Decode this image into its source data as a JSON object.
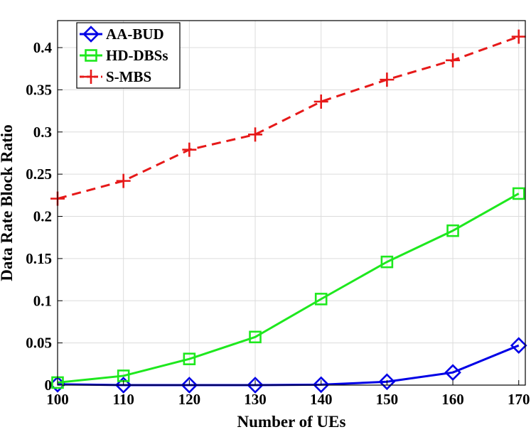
{
  "chart_data": {
    "type": "line",
    "xlabel": "Number of UEs",
    "ylabel": "Data Rate Block Ratio",
    "x": [
      100,
      110,
      120,
      130,
      140,
      150,
      160,
      170
    ],
    "xticks": [
      "100",
      "110",
      "120",
      "130",
      "140",
      "150",
      "160",
      "170"
    ],
    "yticks": [
      "0",
      "0.05",
      "0.1",
      "0.15",
      "0.2",
      "0.25",
      "0.3",
      "0.35",
      "0.4"
    ],
    "xlim": [
      100,
      171
    ],
    "ylim": [
      0,
      0.432
    ],
    "grid": true,
    "legend_position": "top-left",
    "series": [
      {
        "name": "AA-BUD",
        "color": "#0000e6",
        "marker": "diamond",
        "line": "solid",
        "values": [
          0.001,
          0.0,
          0.0,
          0.0,
          0.0005,
          0.004,
          0.015,
          0.047
        ]
      },
      {
        "name": "HD-DBSs",
        "color": "#1ee81e",
        "marker": "square",
        "line": "solid",
        "values": [
          0.003,
          0.011,
          0.031,
          0.057,
          0.102,
          0.146,
          0.183,
          0.227
        ]
      },
      {
        "name": "S-MBS",
        "color": "#e61919",
        "marker": "plus",
        "line": "dashed",
        "values": [
          0.221,
          0.242,
          0.279,
          0.297,
          0.336,
          0.362,
          0.385,
          0.413
        ]
      }
    ]
  }
}
